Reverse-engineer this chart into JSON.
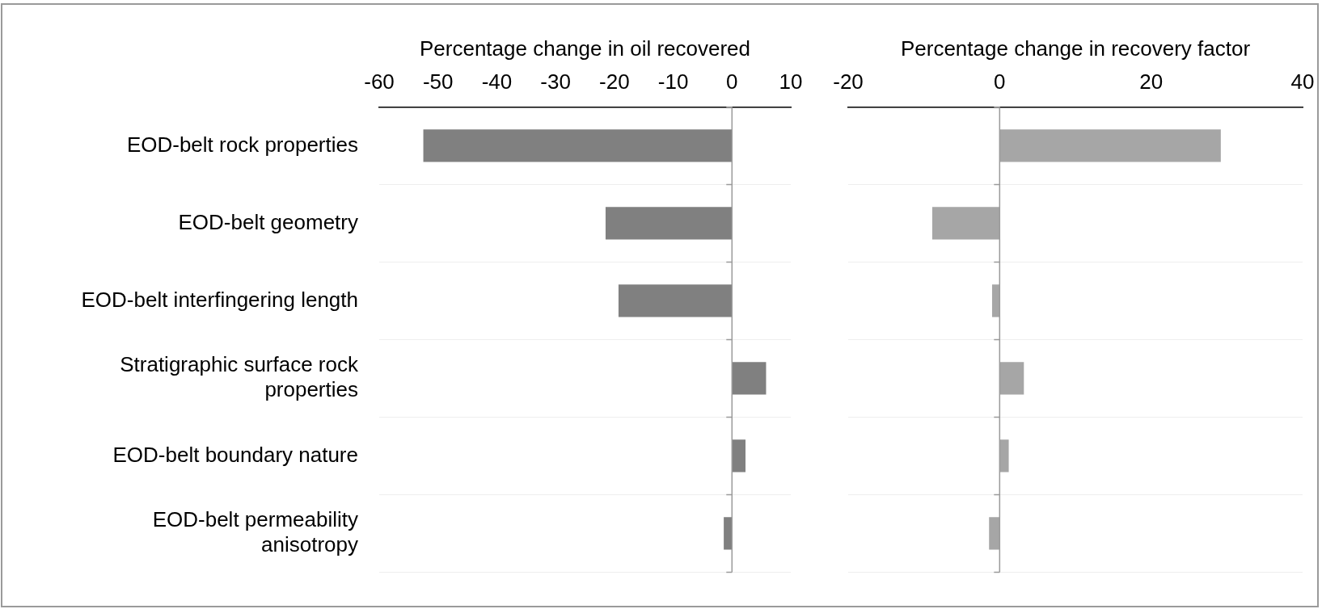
{
  "chart_data": [
    {
      "type": "bar",
      "orientation": "horizontal",
      "xlabel": "Percentage change in oil recovered",
      "categories": [
        "EOD-belt rock properties",
        "EOD-belt geometry",
        "EOD-belt interfingering length",
        "Stratigraphic surface rock properties",
        "EOD-belt boundary nature",
        "EOD-belt permeability anisotropy"
      ],
      "values": [
        -52.5,
        -21.5,
        -19.3,
        5.8,
        2.3,
        -1.4
      ],
      "color": "#808080",
      "xlim": [
        -60,
        10
      ],
      "xticks": [
        -60,
        -50,
        -40,
        -30,
        -20,
        -10,
        0,
        10
      ],
      "grid": "y",
      "legend": false
    },
    {
      "type": "bar",
      "orientation": "horizontal",
      "xlabel": "Percentage change in recovery factor",
      "categories": [
        null,
        null,
        null,
        null,
        null,
        null
      ],
      "values": [
        29.2,
        -8.9,
        -1.0,
        3.2,
        1.2,
        -1.4
      ],
      "color": "#a6a6a6",
      "xlim": [
        -20,
        40
      ],
      "xticks": [
        -20,
        0,
        20,
        40
      ],
      "grid": "y",
      "legend": false
    }
  ]
}
